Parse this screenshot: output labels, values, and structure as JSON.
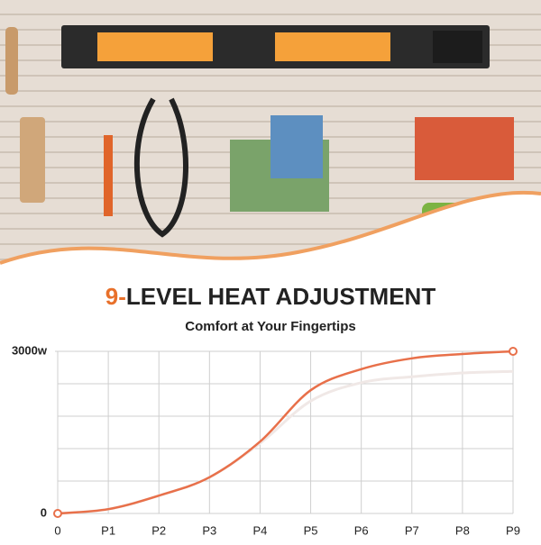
{
  "chart_data": {
    "type": "line",
    "title_parts": [
      "9-",
      "LEVEL HEAT ADJUSTMENT"
    ],
    "subtitle": "Comfort at Your Fingertips",
    "categories": [
      "0",
      "P1",
      "P2",
      "P3",
      "P4",
      "P5",
      "P6",
      "P7",
      "P8",
      "P9"
    ],
    "series": [
      {
        "color": "#f0e8e6",
        "values": [
          0,
          80,
          330,
          670,
          1300,
          2080,
          2420,
          2530,
          2600,
          2630
        ]
      },
      {
        "color": "#e8704a",
        "values": [
          0,
          80,
          330,
          670,
          1330,
          2280,
          2670,
          2870,
          2950,
          3000
        ]
      }
    ],
    "ylim": [
      0,
      3000
    ],
    "yticks": [
      0,
      {
        "value": 3000,
        "label": "3000w"
      }
    ],
    "ygrid": [
      0,
      600,
      1200,
      1800,
      2400,
      3000
    ],
    "grid": true,
    "accent_color": "#e8702a"
  }
}
